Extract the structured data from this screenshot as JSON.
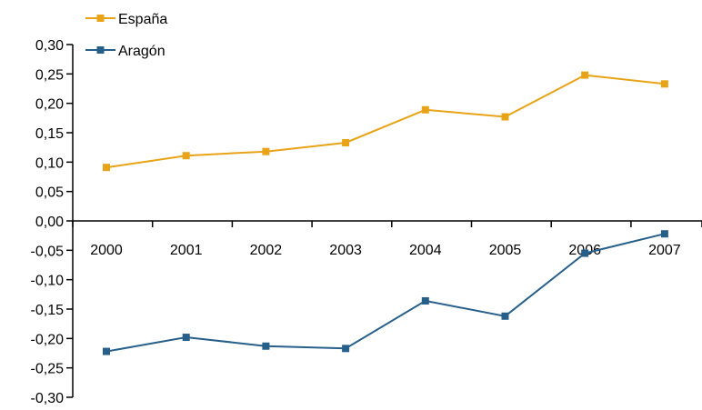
{
  "chart_data": {
    "type": "line",
    "categories": [
      "2000",
      "2001",
      "2002",
      "2003",
      "2004",
      "2005",
      "2006",
      "2007"
    ],
    "series": [
      {
        "name": "España",
        "color": "#E8A317",
        "values": [
          0.091,
          0.111,
          0.118,
          0.133,
          0.189,
          0.177,
          0.248,
          0.233
        ]
      },
      {
        "name": "Aragón",
        "color": "#265F8A",
        "values": [
          -0.222,
          -0.198,
          -0.213,
          -0.217,
          -0.136,
          -0.162,
          -0.055,
          -0.022
        ]
      }
    ],
    "title": "",
    "xlabel": "",
    "ylabel": "",
    "ylim": [
      -0.3,
      0.3
    ],
    "yticks": [
      "0,30",
      "0,25",
      "0,20",
      "0,15",
      "0,10",
      "0,05",
      "0,00",
      "-0,05",
      "-0,10",
      "-0,15",
      "-0,20",
      "-0,25",
      "-0,30"
    ],
    "grid": false,
    "legend_position": "top-left",
    "marker": "square"
  }
}
